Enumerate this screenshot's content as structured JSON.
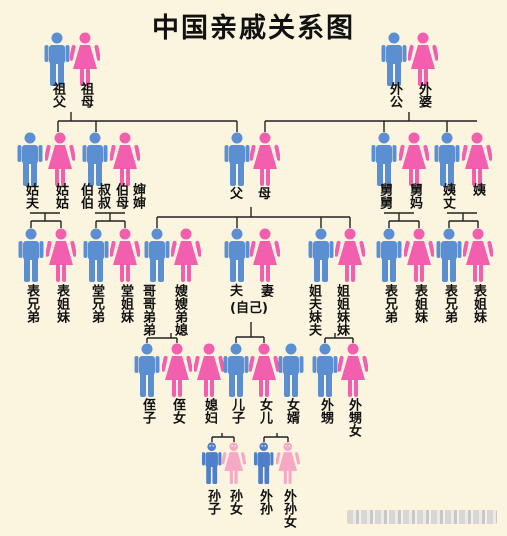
{
  "title": "中国亲戚关系图",
  "colors": {
    "male": "#5b8fd1",
    "female": "#f25fae",
    "male_small": "#4f7fc9",
    "female_small": "#f7a8c4",
    "line": "#222222",
    "background": "#fbf5e0"
  },
  "labels": {
    "zufu": "祖父",
    "zumu": "祖母",
    "waigong": "外公",
    "waipo": "外婆",
    "gufu": "姑夫",
    "gugu": "姑姑",
    "bobo": "伯伯",
    "shushu": "叔叔",
    "bomu": "伯母",
    "shenshen": "婶婶",
    "fu": "父",
    "mu": "母",
    "jiujiu": "舅舅",
    "jiuma": "舅妈",
    "yizhang": "姨丈",
    "yi": "姨",
    "biaoxiongdi_1": "表兄弟",
    "biaojiemei_1": "表姐妹",
    "tangxiongdi": "堂兄弟",
    "tangjiemei": "堂姐妹",
    "gege_didi": "哥哥弟弟",
    "saosao_dixi": "嫂嫂弟媳",
    "fu_self": "夫",
    "qi_self": "妻",
    "self": "(自己)",
    "jiefu_meifu": "姐夫妹夫",
    "jiejie_meimei": "姐姐妹妹",
    "biaoxiongdi_2": "表兄弟",
    "biaojiemei_2": "表姐妹",
    "biaoxiongdi_3": "表兄弟",
    "biaojiemei_3": "表姐妹",
    "zhizi": "侄子",
    "zhinv": "侄女",
    "xifu": "媳妇",
    "erzi": "儿子",
    "nver": "女儿",
    "nvxu": "女婿",
    "waisheng": "外甥",
    "waishengnv": "外甥女",
    "sunzi": "孙子",
    "sunnv": "孙女",
    "waisun": "外孙",
    "waisunnv": "外孙女"
  }
}
